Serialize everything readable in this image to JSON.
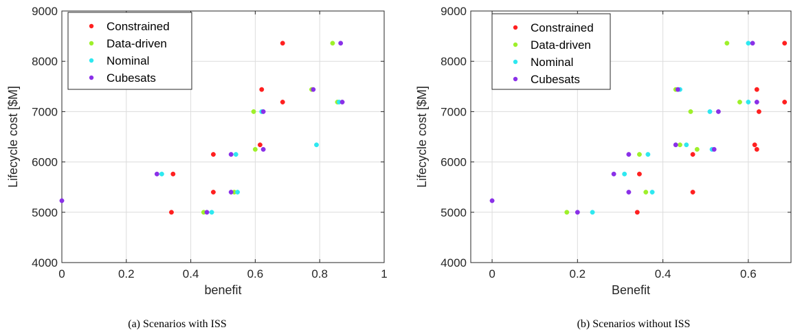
{
  "chart_data": [
    {
      "type": "scatter",
      "caption": "(a) Scenarios with ISS",
      "xlabel": "benefit",
      "ylabel": "Lifecycle cost [$M]",
      "xlim": [
        0,
        1
      ],
      "ylim": [
        4000,
        9000
      ],
      "xticks": [
        0,
        0.2,
        0.4,
        0.6,
        0.8,
        1
      ],
      "xtick_labels": [
        "0",
        "0.2",
        "0.4",
        "0.6",
        "0.8",
        "1"
      ],
      "yticks": [
        4000,
        5000,
        6000,
        7000,
        8000,
        9000
      ],
      "ytick_labels": [
        "4000",
        "5000",
        "6000",
        "7000",
        "8000",
        "9000"
      ],
      "grid": true,
      "legend_position": "top-left",
      "series": [
        {
          "name": "Constrained",
          "color": "#ff2020",
          "x": [
            0.34,
            0.345,
            0.47,
            0.47,
            0.615,
            0.62,
            0.685,
            0.685
          ],
          "y": [
            5000,
            5760,
            5400,
            6150,
            6340,
            7440,
            7190,
            8360
          ]
        },
        {
          "name": "Data-driven",
          "color": "#9ef02a",
          "x": [
            0.44,
            0.535,
            0.6,
            0.595,
            0.775,
            0.84,
            0.855
          ],
          "y": [
            5000,
            5400,
            6250,
            7000,
            7440,
            8360,
            7190
          ]
        },
        {
          "name": "Nominal",
          "color": "#2ee8f0",
          "x": [
            0.31,
            0.465,
            0.545,
            0.54,
            0.62,
            0.79,
            0.86
          ],
          "y": [
            5760,
            5000,
            5400,
            6150,
            7000,
            6340,
            7190
          ]
        },
        {
          "name": "Cubesats",
          "color": "#8a30e8",
          "x": [
            0,
            0.295,
            0.45,
            0.525,
            0.525,
            0.625,
            0.625,
            0.78,
            0.87,
            0.865
          ],
          "y": [
            5230,
            5760,
            5000,
            5400,
            6150,
            6250,
            7000,
            7440,
            7190,
            8360
          ]
        }
      ]
    },
    {
      "type": "scatter",
      "caption": "(b) Scenarios without ISS",
      "xlabel": "Benefit",
      "ylabel": "Lifecycle cost [$M]",
      "xlim": [
        -0.05,
        0.7
      ],
      "ylim": [
        4000,
        9000
      ],
      "xticks": [
        0,
        0.2,
        0.4,
        0.6
      ],
      "xtick_labels": [
        "0",
        "0.2",
        "0.4",
        "0.6"
      ],
      "yticks": [
        4000,
        5000,
        6000,
        7000,
        8000,
        9000
      ],
      "ytick_labels": [
        "4000",
        "5000",
        "6000",
        "7000",
        "8000",
        "9000"
      ],
      "grid": true,
      "legend_position": "top-left",
      "series": [
        {
          "name": "Constrained",
          "color": "#ff2020",
          "x": [
            0.34,
            0.345,
            0.47,
            0.47,
            0.615,
            0.62,
            0.62,
            0.625,
            0.685,
            0.685
          ],
          "y": [
            5000,
            5760,
            5400,
            6150,
            6340,
            6250,
            7440,
            7000,
            7190,
            8360
          ]
        },
        {
          "name": "Data-driven",
          "color": "#9ef02a",
          "x": [
            0.175,
            0.36,
            0.345,
            0.44,
            0.48,
            0.465,
            0.43,
            0.58,
            0.55
          ],
          "y": [
            5000,
            5400,
            6150,
            6340,
            6250,
            7000,
            7440,
            7190,
            8360
          ]
        },
        {
          "name": "Nominal",
          "color": "#2ee8f0",
          "x": [
            0.235,
            0.31,
            0.375,
            0.365,
            0.455,
            0.515,
            0.51,
            0.44,
            0.6,
            0.6
          ],
          "y": [
            5000,
            5760,
            5400,
            6150,
            6340,
            6250,
            7000,
            7440,
            7190,
            8360
          ]
        },
        {
          "name": "Cubesats",
          "color": "#8a30e8",
          "x": [
            0,
            0.2,
            0.285,
            0.32,
            0.32,
            0.43,
            0.52,
            0.53,
            0.435,
            0.62,
            0.61
          ],
          "y": [
            5230,
            5000,
            5760,
            5400,
            6150,
            6340,
            6250,
            7000,
            7440,
            7190,
            8360
          ]
        }
      ]
    }
  ]
}
